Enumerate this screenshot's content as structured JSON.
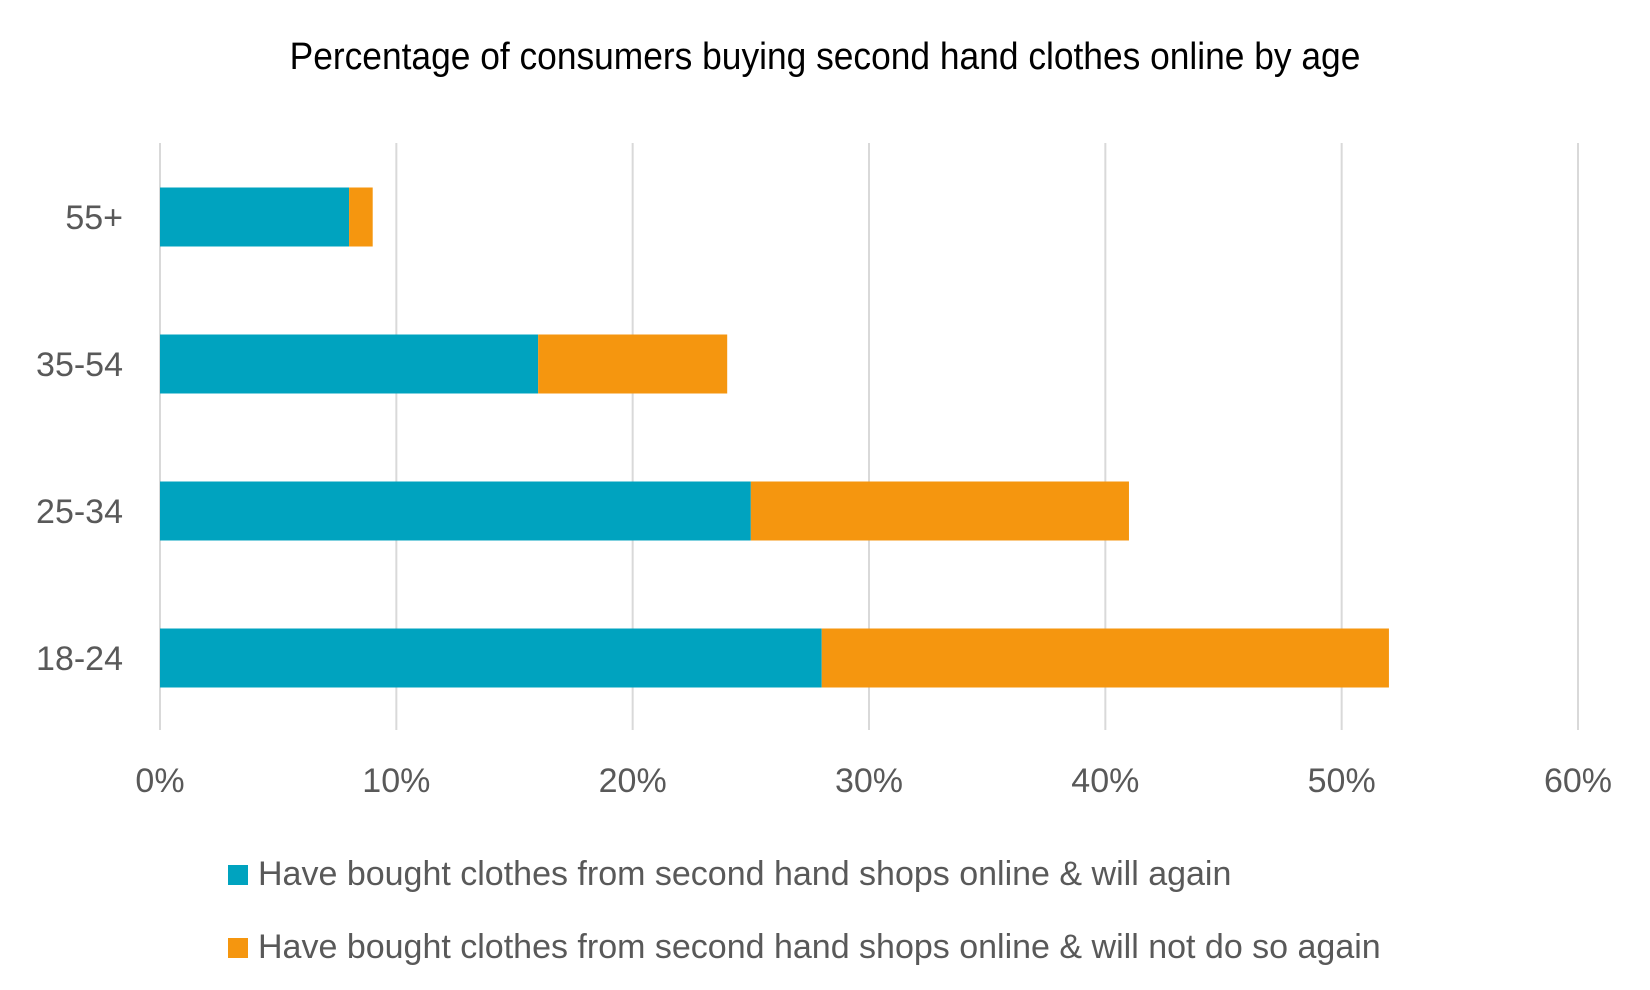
{
  "chart_data": {
    "type": "bar",
    "orientation": "horizontal",
    "stacked": true,
    "title": "Percentage of consumers buying second hand clothes online by age",
    "xlabel": "",
    "ylabel": "",
    "categories": [
      "55+",
      "35-54",
      "25-34",
      "18-24"
    ],
    "series": [
      {
        "name": "Have bought clothes from second hand shops online & will again",
        "color": "#00A3BF",
        "values": [
          8,
          16,
          25,
          28
        ]
      },
      {
        "name": "Have bought clothes from second hand shops online & will not do so again",
        "color": "#F5960F",
        "values": [
          1,
          8,
          16,
          24
        ]
      }
    ],
    "xlim": [
      0,
      60
    ],
    "xticks": [
      0,
      10,
      20,
      30,
      40,
      50,
      60
    ],
    "xtick_labels": [
      "0%",
      "10%",
      "20%",
      "30%",
      "40%",
      "50%",
      "60%"
    ],
    "grid": true,
    "gridline_color": "#D9D9D9",
    "legend_position": "bottom"
  }
}
